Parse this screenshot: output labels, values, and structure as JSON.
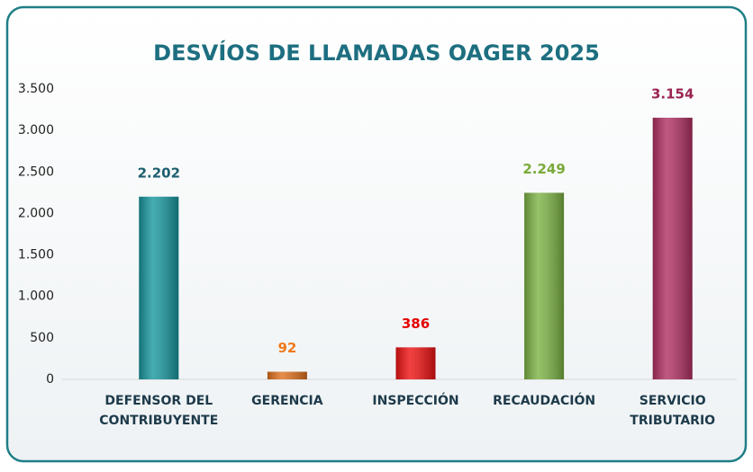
{
  "chart_data": {
    "type": "bar",
    "title": "DESVÍOS DE LLAMADAS OAGER 2025",
    "categories": [
      "DEFENSOR DEL\nCONTRIBUYENTE",
      "GERENCIA",
      "INSPECCIÓN",
      "RECAUDACIÓN",
      "SERVICIO\nTRIBUTARIO"
    ],
    "values": [
      2202,
      92,
      386,
      2249,
      3154
    ],
    "value_labels": [
      "2.202",
      "92",
      "386",
      "2.249",
      "3.154"
    ],
    "colors": [
      "#17979e",
      "#e0701e",
      "#ee1111",
      "#7cb344",
      "#b02f62"
    ],
    "label_colors": [
      "#1d5f70",
      "#f07a1e",
      "#e40000",
      "#7aaa3a",
      "#9a2352"
    ],
    "ylim": [
      0,
      3500
    ],
    "yticks": [
      0,
      500,
      {
        "value": 1000,
        "label": "1.000"
      },
      {
        "value": 1500,
        "label": "1.500"
      },
      {
        "value": 2000,
        "label": "2.000"
      },
      {
        "value": 2500,
        "label": "2.500"
      },
      {
        "value": 3000,
        "label": "3.000"
      },
      {
        "value": 3500,
        "label": "3.500"
      }
    ],
    "grid": false
  }
}
